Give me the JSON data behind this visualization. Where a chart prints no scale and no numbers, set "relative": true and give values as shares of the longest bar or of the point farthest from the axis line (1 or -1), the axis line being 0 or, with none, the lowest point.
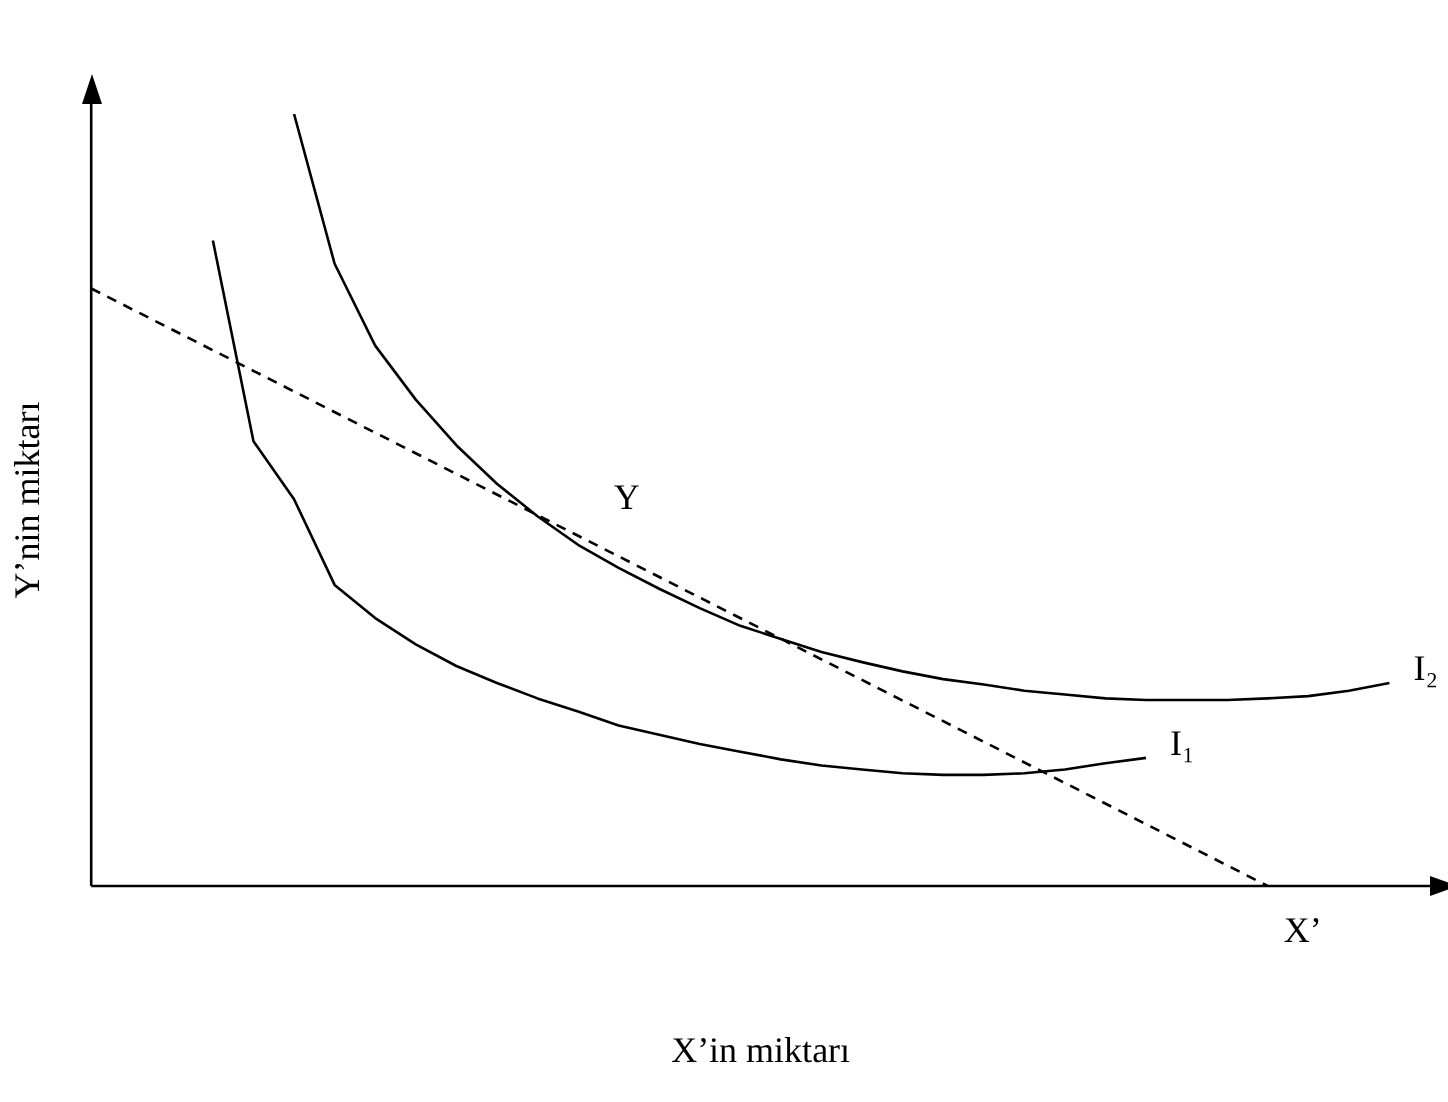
{
  "chart_data": {
    "type": "line",
    "relative": true,
    "xlabel": "X’in miktarı",
    "ylabel": "Y’nin miktarı",
    "grid": false,
    "legend": false,
    "marker": "none",
    "categories": [
      null,
      null,
      null,
      null,
      null,
      null,
      null,
      null,
      null,
      null,
      null,
      null,
      null,
      null,
      null,
      null,
      null,
      null,
      null,
      null,
      null,
      null,
      null,
      null,
      null,
      null,
      null,
      null,
      null,
      null,
      null,
      null,
      null,
      null
    ],
    "series": [
      {
        "name": "I₁",
        "color": "#000000",
        "line_style": "solid",
        "values": [
          null,
          null,
          null,
          0.836,
          0.576,
          0.501,
          0.39,
          0.347,
          0.313,
          0.285,
          0.263,
          0.243,
          0.226,
          0.208,
          0.196,
          0.184,
          0.174,
          0.164,
          0.156,
          0.151,
          0.146,
          0.144,
          0.144,
          0.146,
          0.151,
          0.159,
          0.166,
          null,
          null,
          null,
          null,
          null,
          null,
          null
        ]
      },
      {
        "name": "I₂",
        "color": "#000000",
        "line_style": "solid",
        "values": [
          null,
          null,
          null,
          null,
          null,
          1.0,
          0.806,
          0.7,
          0.63,
          0.571,
          0.521,
          0.479,
          0.442,
          0.412,
          0.385,
          0.36,
          0.337,
          0.32,
          0.303,
          0.29,
          0.278,
          0.268,
          0.261,
          0.253,
          0.248,
          0.243,
          0.241,
          0.241,
          0.241,
          0.243,
          0.246,
          0.253,
          0.263,
          null
        ]
      },
      {
        "color": "#000000",
        "line_style": "dashed",
        "values": [
          0.774,
          null,
          null,
          null,
          null,
          null,
          null,
          null,
          null,
          null,
          null,
          null,
          null,
          null,
          null,
          null,
          null,
          null,
          null,
          null,
          null,
          null,
          null,
          null,
          null,
          null,
          null,
          null,
          null,
          0,
          null,
          null,
          null,
          null
        ]
      }
    ],
    "annotations": [
      "Y",
      "X’"
    ]
  }
}
